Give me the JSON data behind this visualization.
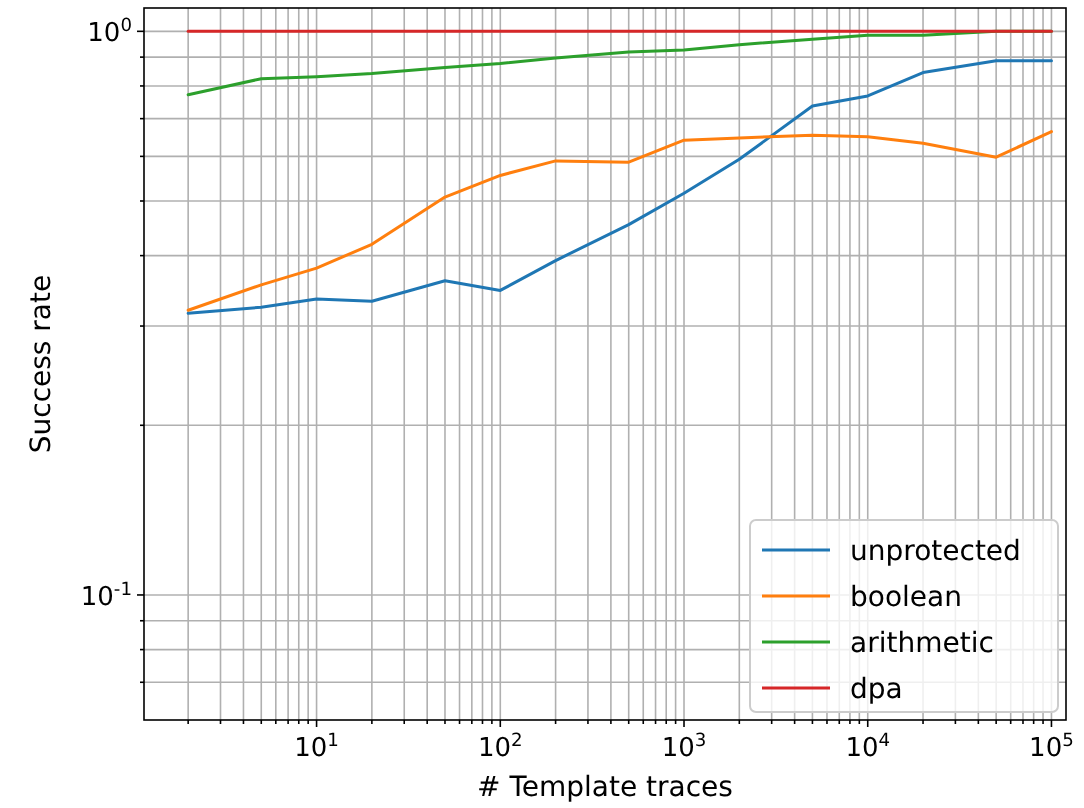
{
  "chart_data": {
    "type": "line",
    "xlabel": "# Template traces",
    "ylabel": "Success rate",
    "log": "xy",
    "grid": true,
    "legend": "bottom right",
    "marker": "none",
    "line_style": "solid",
    "x": [
      2,
      5,
      10,
      20,
      50,
      100,
      200,
      500,
      1000,
      2000,
      5000,
      10000,
      20000,
      50000,
      100000
    ],
    "xlim": [
      1.15,
      120000
    ],
    "ylim": [
      0.06,
      1.1
    ],
    "xticks": [
      {
        "value": 2,
        "label": null
      },
      {
        "value": 3,
        "label": null
      },
      {
        "value": 4,
        "label": null
      },
      {
        "value": 5,
        "label": null
      },
      {
        "value": 6,
        "label": null
      },
      {
        "value": 7,
        "label": null
      },
      {
        "value": 8,
        "label": null
      },
      {
        "value": 9,
        "label": null
      },
      {
        "value": 10,
        "label": "10$^{1}$"
      },
      {
        "value": 20,
        "label": null
      },
      {
        "value": 30,
        "label": null
      },
      {
        "value": 40,
        "label": null
      },
      {
        "value": 50,
        "label": null
      },
      {
        "value": 60,
        "label": null
      },
      {
        "value": 70,
        "label": null
      },
      {
        "value": 80,
        "label": null
      },
      {
        "value": 90,
        "label": null
      },
      {
        "value": 100,
        "label": "10$^{2}$"
      },
      {
        "value": 200,
        "label": null
      },
      {
        "value": 300,
        "label": null
      },
      {
        "value": 400,
        "label": null
      },
      {
        "value": 500,
        "label": null
      },
      {
        "value": 600,
        "label": null
      },
      {
        "value": 700,
        "label": null
      },
      {
        "value": 800,
        "label": null
      },
      {
        "value": 900,
        "label": null
      },
      {
        "value": 1000,
        "label": "10$^{3}$"
      },
      {
        "value": 2000,
        "label": null
      },
      {
        "value": 3000,
        "label": null
      },
      {
        "value": 4000,
        "label": null
      },
      {
        "value": 5000,
        "label": null
      },
      {
        "value": 6000,
        "label": null
      },
      {
        "value": 7000,
        "label": null
      },
      {
        "value": 8000,
        "label": null
      },
      {
        "value": 9000,
        "label": null
      },
      {
        "value": 10000,
        "label": "10$^{4}$"
      },
      {
        "value": 20000,
        "label": null
      },
      {
        "value": 30000,
        "label": null
      },
      {
        "value": 40000,
        "label": null
      },
      {
        "value": 50000,
        "label": null
      },
      {
        "value": 60000,
        "label": null
      },
      {
        "value": 70000,
        "label": null
      },
      {
        "value": 80000,
        "label": null
      },
      {
        "value": 90000,
        "label": null
      },
      {
        "value": 100000,
        "label": "10$^{5}$"
      }
    ],
    "yticks": [
      {
        "value": 0.07,
        "label": null
      },
      {
        "value": 0.08,
        "label": null
      },
      {
        "value": 0.09,
        "label": null
      },
      {
        "value": 0.1,
        "label": "10$^{-1}$"
      },
      {
        "value": 0.2,
        "label": null
      },
      {
        "value": 0.3,
        "label": null
      },
      {
        "value": 0.4,
        "label": null
      },
      {
        "value": 0.5,
        "label": null
      },
      {
        "value": 0.6,
        "label": null
      },
      {
        "value": 0.7,
        "label": null
      },
      {
        "value": 0.8,
        "label": null
      },
      {
        "value": 0.9,
        "label": null
      },
      {
        "value": 1,
        "label": "10$^{0}$"
      }
    ],
    "series": [
      {
        "name": "unprotected",
        "color": "#1f77b4",
        "values": [
          0.316,
          0.324,
          0.335,
          0.332,
          0.361,
          0.347,
          0.392,
          0.454,
          0.516,
          0.593,
          0.737,
          0.768,
          0.845,
          0.887,
          0.887
        ]
      },
      {
        "name": "boolean",
        "color": "#ff7f0e",
        "values": [
          0.32,
          0.355,
          0.38,
          0.419,
          0.508,
          0.555,
          0.589,
          0.586,
          0.641,
          0.647,
          0.654,
          0.65,
          0.633,
          0.598,
          0.664
        ]
      },
      {
        "name": "arithmetic",
        "color": "#2ca02c",
        "values": [
          0.772,
          0.824,
          0.831,
          0.842,
          0.863,
          0.877,
          0.897,
          0.919,
          0.927,
          0.947,
          0.968,
          0.984,
          0.984,
          1,
          1
        ]
      },
      {
        "name": "dpa",
        "color": "#d62728",
        "values": [
          1,
          1,
          1,
          1,
          1,
          1,
          1,
          1,
          1,
          1,
          1,
          1,
          1,
          1,
          1
        ]
      }
    ]
  }
}
